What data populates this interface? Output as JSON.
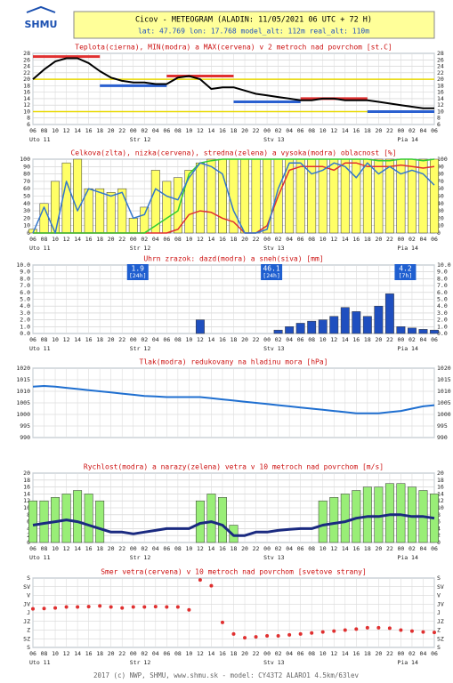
{
  "header": {
    "logo": "SHMU",
    "title": "Cicov - METEOGRAM (ALADIN: 11/05/2021 06 UTC + 72 H)",
    "subtitle": "lat: 47.769  lon: 17.768  model_alt: 112m  real_alt: 110m"
  },
  "footer": "2017 (c) NWP, SHMU, www.shmu.sk - model: CY43T2 ALARO1 4.5km/63lev",
  "chart_data": [
    {
      "type": "line",
      "title": "Teplota(cierna), MIN(modra) a MAX(cervena) v 2 metroch nad povrchom [st.C]",
      "categories": [
        "06",
        "08",
        "10",
        "12",
        "14",
        "16",
        "18",
        "20",
        "22",
        "00",
        "02",
        "04",
        "06",
        "08",
        "10",
        "12",
        "14",
        "16",
        "18",
        "20",
        "22",
        "00",
        "02",
        "04",
        "06",
        "08",
        "10",
        "12",
        "14",
        "16",
        "18",
        "20",
        "22",
        "00",
        "02",
        "04",
        "06"
      ],
      "day_labels": [
        "Uto 11",
        null,
        null,
        null,
        null,
        null,
        null,
        null,
        null,
        "Str 12",
        null,
        null,
        null,
        null,
        null,
        null,
        null,
        null,
        null,
        null,
        null,
        "Stv 13",
        null,
        null,
        null,
        null,
        null,
        null,
        null,
        null,
        null,
        null,
        null,
        "Pia 14",
        null,
        null,
        null
      ],
      "ylim": [
        6,
        28
      ],
      "yticks": [
        6,
        8,
        10,
        12,
        14,
        16,
        18,
        20,
        22,
        24,
        26,
        28
      ],
      "grid": true,
      "ref_lines": [
        20,
        10
      ],
      "ref_color": "#e8d800",
      "series": [
        {
          "mark": "line",
          "color": "#e03030",
          "width": 3,
          "values": [
            27,
            27,
            27,
            27,
            27,
            27,
            27,
            null,
            null,
            null,
            null,
            null,
            21,
            21,
            21,
            21,
            21,
            21,
            21,
            null,
            null,
            null,
            null,
            null,
            14,
            14,
            14,
            14,
            14,
            14,
            14,
            null,
            null,
            null,
            null,
            null,
            null
          ]
        },
        {
          "mark": "line",
          "color": "#2a60d0",
          "width": 3,
          "values": [
            null,
            null,
            null,
            null,
            null,
            null,
            18,
            18,
            18,
            18,
            18,
            18,
            18,
            null,
            null,
            null,
            null,
            null,
            13,
            13,
            13,
            13,
            13,
            13,
            13,
            null,
            null,
            null,
            null,
            null,
            10,
            10,
            10,
            10,
            10,
            10,
            10
          ]
        },
        {
          "mark": "line",
          "color": "#000000",
          "width": 2,
          "values": [
            20,
            23,
            25.5,
            26.5,
            26.5,
            25,
            22.5,
            20.5,
            19.5,
            19,
            19,
            18.5,
            18.5,
            20.5,
            21,
            20,
            17,
            17.5,
            17.5,
            16.5,
            15.5,
            15,
            14.5,
            14,
            13.5,
            13.5,
            14,
            14,
            13.5,
            13.5,
            13.5,
            13,
            12.5,
            12,
            11.5,
            11,
            11
          ]
        }
      ]
    },
    {
      "type": "bar",
      "title": "Celkova(zlta), nizka(cervena), stredna(zelena) a vysoka(modra) oblacnost [%]",
      "categories": [
        "06",
        "08",
        "10",
        "12",
        "14",
        "16",
        "18",
        "20",
        "22",
        "00",
        "02",
        "04",
        "06",
        "08",
        "10",
        "12",
        "14",
        "16",
        "18",
        "20",
        "22",
        "00",
        "02",
        "04",
        "06",
        "08",
        "10",
        "12",
        "14",
        "16",
        "18",
        "20",
        "22",
        "00",
        "02",
        "04",
        "06"
      ],
      "day_labels": [
        "Uto 11",
        null,
        null,
        null,
        null,
        null,
        null,
        null,
        null,
        "Str 12",
        null,
        null,
        null,
        null,
        null,
        null,
        null,
        null,
        null,
        null,
        null,
        "Stv 13",
        null,
        null,
        null,
        null,
        null,
        null,
        null,
        null,
        null,
        null,
        null,
        "Pia 14",
        null,
        null,
        null
      ],
      "ylim": [
        0,
        100
      ],
      "yticks": [
        0,
        10,
        20,
        30,
        40,
        50,
        60,
        70,
        80,
        90,
        100
      ],
      "grid": true,
      "series": [
        {
          "mark": "bar",
          "color": "#ffff66",
          "values": [
            5,
            40,
            70,
            95,
            100,
            60,
            60,
            55,
            60,
            20,
            35,
            85,
            70,
            75,
            85,
            95,
            100,
            100,
            100,
            100,
            100,
            100,
            100,
            100,
            100,
            100,
            100,
            100,
            100,
            100,
            100,
            100,
            100,
            100,
            100,
            100,
            100
          ]
        },
        {
          "mark": "line",
          "color": "#e03030",
          "width": 1.5,
          "values": [
            0,
            0,
            0,
            0,
            0,
            0,
            0,
            0,
            0,
            0,
            0,
            0,
            0,
            5,
            25,
            30,
            28,
            20,
            15,
            0,
            0,
            10,
            50,
            85,
            90,
            90,
            90,
            85,
            95,
            95,
            90,
            90,
            90,
            92,
            90,
            88,
            90
          ]
        },
        {
          "mark": "line",
          "color": "#33cc33",
          "width": 1.5,
          "values": [
            0,
            0,
            0,
            0,
            0,
            0,
            0,
            0,
            0,
            0,
            0,
            10,
            20,
            30,
            80,
            95,
            98,
            100,
            100,
            100,
            100,
            100,
            100,
            100,
            100,
            100,
            100,
            100,
            100,
            100,
            100,
            98,
            98,
            100,
            100,
            98,
            100
          ]
        },
        {
          "mark": "line",
          "color": "#3377cc",
          "width": 1.5,
          "values": [
            0,
            35,
            0,
            70,
            30,
            60,
            55,
            50,
            55,
            20,
            25,
            60,
            50,
            45,
            75,
            95,
            90,
            80,
            30,
            0,
            0,
            5,
            60,
            95,
            95,
            80,
            85,
            95,
            90,
            75,
            95,
            80,
            90,
            80,
            85,
            80,
            65
          ]
        }
      ]
    },
    {
      "type": "bar",
      "title": "Uhrn zrazok: dazd(modra) a sneh(siva) [mm]",
      "categories": [
        "06",
        "08",
        "10",
        "12",
        "14",
        "16",
        "18",
        "20",
        "22",
        "00",
        "02",
        "04",
        "06",
        "08",
        "10",
        "12",
        "14",
        "16",
        "18",
        "20",
        "22",
        "00",
        "02",
        "04",
        "06",
        "08",
        "10",
        "12",
        "14",
        "16",
        "18",
        "20",
        "22",
        "00",
        "02",
        "04",
        "06"
      ],
      "day_labels": [
        "Uto 11",
        null,
        null,
        null,
        null,
        null,
        null,
        null,
        null,
        "Str 12",
        null,
        null,
        null,
        null,
        null,
        null,
        null,
        null,
        null,
        null,
        null,
        "Stv 13",
        null,
        null,
        null,
        null,
        null,
        null,
        null,
        null,
        null,
        null,
        null,
        "Pia 14",
        null,
        null,
        null
      ],
      "ylim": [
        0,
        10
      ],
      "yticks": [
        {
          "value": 0,
          "label": "0.0"
        },
        {
          "value": 1,
          "label": "1.0"
        },
        {
          "value": 2,
          "label": "2.0"
        },
        {
          "value": 3,
          "label": "3.0"
        },
        {
          "value": 4,
          "label": "4.0"
        },
        {
          "value": 5,
          "label": "5.0"
        },
        {
          "value": 6,
          "label": "6.0"
        },
        {
          "value": 7,
          "label": "7.0"
        },
        {
          "value": 8,
          "label": "8.0"
        },
        {
          "value": 9,
          "label": "9.0"
        },
        {
          "value": 10,
          "label": "10.0"
        }
      ],
      "grid": true,
      "totals": [
        {
          "value": 1.9,
          "period": "[24h]"
        },
        {
          "value": 46.1,
          "period": "[24h]"
        },
        {
          "value": 4.2,
          "period": "[7h]"
        }
      ],
      "series": [
        {
          "mark": "bar",
          "color": "#1f4fbf",
          "values": [
            0,
            0,
            0,
            0,
            0,
            0,
            0,
            0,
            0,
            0,
            0,
            0,
            0,
            0,
            0,
            2,
            0,
            0,
            0,
            0,
            0,
            0,
            0.5,
            1,
            1.5,
            1.8,
            2,
            2.5,
            3.8,
            3.2,
            2.5,
            4,
            5.8,
            1,
            0.8,
            0.6,
            0.5
          ]
        }
      ]
    },
    {
      "type": "line",
      "title": "Tlak(modra) redukovany na hladinu mora [hPa]",
      "ylim": [
        990,
        1020
      ],
      "yticks": [
        990,
        995,
        1000,
        1005,
        1010,
        1015,
        1020
      ],
      "grid": true,
      "series": [
        {
          "mark": "line",
          "color": "#1f6fd0",
          "width": 2,
          "values": [
            1012,
            1012.3,
            1012,
            1011.5,
            1011,
            1010.5,
            1010,
            1009.5,
            1009,
            1008.5,
            1008,
            1007.8,
            1007.5,
            1007.5,
            1007.5,
            1007.5,
            1007,
            1006.5,
            1006,
            1005.5,
            1005,
            1004.5,
            1004,
            1003.5,
            1003,
            1002.5,
            1002,
            1001.5,
            1001,
            1000.5,
            1000.5,
            1000.5,
            1001,
            1001.5,
            1002.5,
            1003.5,
            1004
          ]
        }
      ]
    },
    {
      "type": "bar",
      "title": "Rychlost(modra) a narazy(zelena) vetra v 10 metroch nad povrchom [m/s]",
      "categories": [
        "06",
        "08",
        "10",
        "12",
        "14",
        "16",
        "18",
        "20",
        "22",
        "00",
        "02",
        "04",
        "06",
        "08",
        "10",
        "12",
        "14",
        "16",
        "18",
        "20",
        "22",
        "00",
        "02",
        "04",
        "06",
        "08",
        "10",
        "12",
        "14",
        "16",
        "18",
        "20",
        "22",
        "00",
        "02",
        "04",
        "06"
      ],
      "day_labels": [
        "Uto 11",
        null,
        null,
        null,
        null,
        null,
        null,
        null,
        null,
        "Str 12",
        null,
        null,
        null,
        null,
        null,
        null,
        null,
        null,
        null,
        null,
        null,
        "Stv 13",
        null,
        null,
        null,
        null,
        null,
        null,
        null,
        null,
        null,
        null,
        null,
        "Pia 14",
        null,
        null,
        null
      ],
      "ylim": [
        0,
        20
      ],
      "yticks": [
        0,
        2,
        4,
        6,
        8,
        10,
        12,
        14,
        16,
        18,
        20
      ],
      "grid": true,
      "series": [
        {
          "mark": "bar",
          "color": "#99ee77",
          "values": [
            12,
            12,
            13,
            14,
            15,
            14,
            12,
            0,
            0,
            0,
            0,
            0,
            0,
            0,
            0,
            12,
            14,
            13,
            5,
            0,
            0,
            0,
            0,
            0,
            0,
            0,
            12,
            13,
            14,
            15,
            16,
            16,
            17,
            17,
            16,
            15,
            14
          ]
        },
        {
          "mark": "line",
          "color": "#1a2a80",
          "width": 3,
          "values": [
            5,
            5.5,
            6,
            6.5,
            6,
            5,
            4,
            3,
            3,
            2.5,
            3,
            3.5,
            4,
            4,
            4,
            5.5,
            6,
            5,
            2,
            2,
            3,
            3,
            3.5,
            3.8,
            4,
            4,
            5,
            5.5,
            6,
            7,
            7.5,
            7.5,
            8,
            8,
            7.5,
            7.5,
            7
          ]
        }
      ]
    },
    {
      "type": "scatter",
      "title": "Smer vetra(cervena) v 10 metroch nad povrchom [svetove strany]",
      "categories": [
        "06",
        "08",
        "10",
        "12",
        "14",
        "16",
        "18",
        "20",
        "22",
        "00",
        "02",
        "04",
        "06",
        "08",
        "10",
        "12",
        "14",
        "16",
        "18",
        "20",
        "22",
        "00",
        "02",
        "04",
        "06",
        "08",
        "10",
        "12",
        "14",
        "16",
        "18",
        "20",
        "22",
        "00",
        "02",
        "04",
        "06"
      ],
      "day_labels": [
        "Uto 11",
        null,
        null,
        null,
        null,
        null,
        null,
        null,
        null,
        "Str 12",
        null,
        null,
        null,
        null,
        null,
        null,
        null,
        null,
        null,
        null,
        null,
        "Stv 13",
        null,
        null,
        null,
        null,
        null,
        null,
        null,
        null,
        null,
        null,
        null,
        "Pia 14",
        null,
        null,
        null
      ],
      "ylim": [
        360,
        0
      ],
      "yticks": [
        {
          "value": 360,
          "label": "S"
        },
        {
          "value": 315,
          "label": "SZ"
        },
        {
          "value": 270,
          "label": "Z"
        },
        {
          "value": 225,
          "label": "JZ"
        },
        {
          "value": 180,
          "label": "J"
        },
        {
          "value": 135,
          "label": "JV"
        },
        {
          "value": 90,
          "label": "V"
        },
        {
          "value": 45,
          "label": "SV"
        },
        {
          "value": 0,
          "label": "S"
        }
      ],
      "grid": true,
      "series": [
        {
          "mark": "dot",
          "color": "#e03030",
          "values": [
            160,
            158,
            155,
            150,
            150,
            148,
            145,
            150,
            155,
            150,
            150,
            148,
            150,
            150,
            165,
            10,
            40,
            230,
            290,
            310,
            305,
            300,
            300,
            295,
            290,
            285,
            280,
            275,
            270,
            265,
            258,
            258,
            260,
            270,
            275,
            280,
            282
          ]
        }
      ]
    }
  ]
}
